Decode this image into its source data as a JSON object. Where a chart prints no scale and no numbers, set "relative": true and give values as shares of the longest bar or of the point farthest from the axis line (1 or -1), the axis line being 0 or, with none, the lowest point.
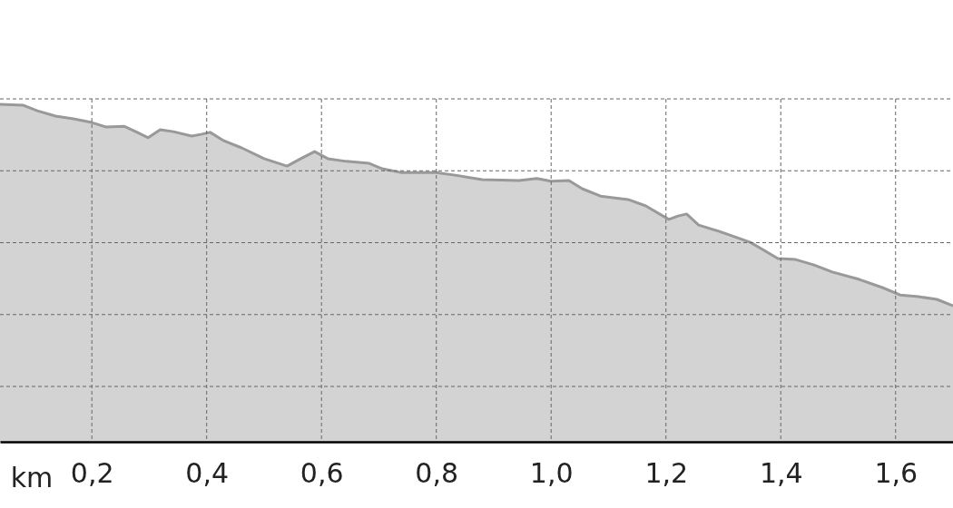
{
  "chart_data": {
    "type": "area",
    "relative": true,
    "xlabel": "km",
    "x": [
      0.04,
      0.081,
      0.105,
      0.137,
      0.168,
      0.2,
      0.224,
      0.256,
      0.279,
      0.298,
      0.319,
      0.342,
      0.374,
      0.39,
      0.406,
      0.43,
      0.461,
      0.5,
      0.54,
      0.564,
      0.588,
      0.611,
      0.643,
      0.683,
      0.706,
      0.738,
      0.8,
      0.833,
      0.88,
      0.944,
      0.975,
      1.0,
      1.031,
      1.054,
      1.086,
      1.134,
      1.165,
      1.205,
      1.221,
      1.236,
      1.257,
      1.292,
      1.347,
      1.371,
      1.395,
      1.426,
      1.458,
      1.49,
      1.537,
      1.577,
      1.608,
      1.64,
      1.672,
      1.7
    ],
    "series": [
      {
        "color": "#999999",
        "values": [
          1.0,
          0.997,
          0.981,
          0.965,
          0.957,
          0.946,
          0.933,
          0.935,
          0.917,
          0.901,
          0.925,
          0.919,
          0.906,
          0.911,
          0.917,
          0.892,
          0.871,
          0.839,
          0.817,
          0.839,
          0.86,
          0.839,
          0.831,
          0.825,
          0.809,
          0.798,
          0.798,
          0.79,
          0.777,
          0.774,
          0.78,
          0.772,
          0.774,
          0.75,
          0.728,
          0.718,
          0.699,
          0.659,
          0.669,
          0.675,
          0.642,
          0.624,
          0.591,
          0.567,
          0.543,
          0.54,
          0.524,
          0.503,
          0.481,
          0.457,
          0.435,
          0.43,
          0.422,
          0.403
        ]
      }
    ],
    "xlim": [
      0.04,
      1.7
    ],
    "xticks": [
      {
        "value": 0.2,
        "label": "0,2"
      },
      {
        "value": 0.4,
        "label": "0,4"
      },
      {
        "value": 0.6,
        "label": "0,6"
      },
      {
        "value": 0.8,
        "label": "0,8"
      },
      {
        "value": 1.0,
        "label": "1,0"
      },
      {
        "value": 1.2,
        "label": "1,2"
      },
      {
        "value": 1.4,
        "label": "1,4"
      },
      {
        "value": 1.6,
        "label": "1,6"
      }
    ],
    "grid": true
  }
}
